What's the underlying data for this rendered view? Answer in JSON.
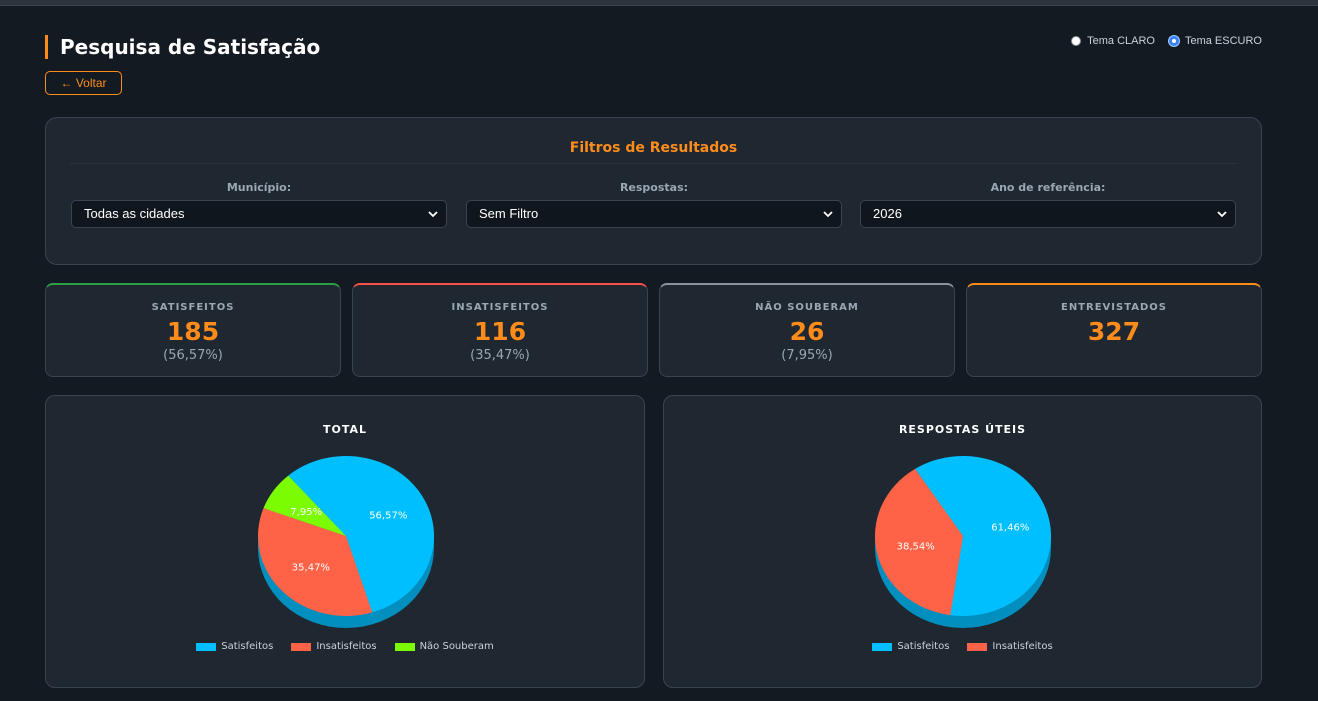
{
  "header": {
    "title": "Pesquisa de Satisfação",
    "back_label": "← Voltar",
    "theme_light_label": "Tema CLARO",
    "theme_dark_label": "Tema ESCURO",
    "theme_selected": "dark"
  },
  "filters": {
    "title": "Filtros de Resultados",
    "municipio": {
      "label": "Município:",
      "value": "Todas as cidades"
    },
    "respostas": {
      "label": "Respostas:",
      "value": "Sem Filtro"
    },
    "ano": {
      "label": "Ano de referência:",
      "value": "2026"
    }
  },
  "stats": [
    {
      "label": "SATISFEITOS",
      "value": "185",
      "pct": "(56,57%)",
      "color": "#2ea043"
    },
    {
      "label": "INSATISFEITOS",
      "value": "116",
      "pct": "(35,47%)",
      "color": "#f85149"
    },
    {
      "label": "NÃO SOUBERAM",
      "value": "26",
      "pct": "(7,95%)",
      "color": "#8b949e"
    },
    {
      "label": "ENTREVISTADOS",
      "value": "327",
      "pct": "",
      "color": "#ff8c1a"
    }
  ],
  "colors": {
    "accent": "#ff8c1a",
    "satisfeitos": "#00bfff",
    "insatisfeitos": "#ff6347",
    "nao_souberam": "#7cfc00"
  },
  "chart_data": [
    {
      "type": "pie",
      "title": "TOTAL",
      "categories": [
        "Satisfeitos",
        "Insatisfeitos",
        "Não Souberam"
      ],
      "values": [
        56.57,
        35.47,
        7.95
      ],
      "labels": [
        "56,57%",
        "35,47%",
        "7,95%"
      ],
      "colors": [
        "#00bfff",
        "#ff6347",
        "#7cfc00"
      ],
      "legend": "bottom"
    },
    {
      "type": "pie",
      "title": "RESPOSTAS ÚTEIS",
      "categories": [
        "Satisfeitos",
        "Insatisfeitos"
      ],
      "values": [
        61.46,
        38.54
      ],
      "labels": [
        "61,46%",
        "38,54%"
      ],
      "colors": [
        "#00bfff",
        "#ff6347"
      ],
      "legend": "bottom"
    }
  ]
}
